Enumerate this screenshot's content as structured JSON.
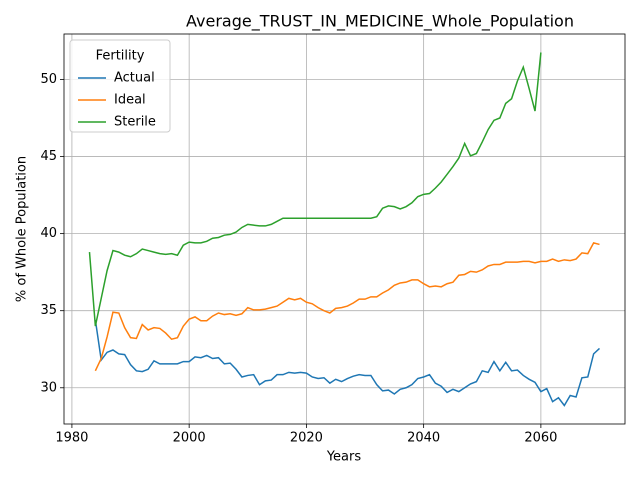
{
  "chart_data": {
    "type": "line",
    "title": "Average_TRUST_IN_MEDICINE_Whole_Population",
    "x_label": "Years",
    "y_label": "% of Whole Population",
    "legend_title": "Fertility",
    "legend": "upper left",
    "grid": true,
    "x": [
      1983,
      1984,
      1985,
      1986,
      1987,
      1988,
      1989,
      1990,
      1991,
      1992,
      1993,
      1994,
      1995,
      1996,
      1997,
      1998,
      1999,
      2000,
      2001,
      2002,
      2003,
      2004,
      2005,
      2006,
      2007,
      2008,
      2009,
      2010,
      2011,
      2012,
      2013,
      2014,
      2015,
      2016,
      2017,
      2018,
      2019,
      2020,
      2021,
      2022,
      2023,
      2024,
      2025,
      2026,
      2027,
      2028,
      2029,
      2030,
      2031,
      2032,
      2033,
      2034,
      2035,
      2036,
      2037,
      2038,
      2039,
      2040,
      2041,
      2042,
      2043,
      2044,
      2045,
      2046,
      2047,
      2048,
      2049,
      2050,
      2051,
      2052,
      2053,
      2054,
      2055,
      2056,
      2057,
      2058,
      2059,
      2060,
      2061,
      2062,
      2063,
      2064,
      2065,
      2066,
      2067,
      2068,
      2069,
      2070
    ],
    "series": [
      {
        "name": "Actual",
        "color": "#1f77b4",
        "values": [
          null,
          34.4,
          31.8,
          32.3,
          32.45,
          32.2,
          32.15,
          31.5,
          31.1,
          31.05,
          31.2,
          31.75,
          31.55,
          31.55,
          31.55,
          31.55,
          31.7,
          31.7,
          32.0,
          31.95,
          32.1,
          31.9,
          31.95,
          31.55,
          31.6,
          31.2,
          30.7,
          30.8,
          30.85,
          30.2,
          30.45,
          30.5,
          30.85,
          30.85,
          31.0,
          30.95,
          31.0,
          30.95,
          30.7,
          30.6,
          30.65,
          30.3,
          30.55,
          30.4,
          30.6,
          30.75,
          30.85,
          30.8,
          30.8,
          30.2,
          29.8,
          29.85,
          29.6,
          29.9,
          30.0,
          30.2,
          30.6,
          30.7,
          30.85,
          30.3,
          30.1,
          29.7,
          29.9,
          29.75,
          30.0,
          30.25,
          30.4,
          31.1,
          31.0,
          31.7,
          31.1,
          31.65,
          31.1,
          31.15,
          30.8,
          30.55,
          30.35,
          29.75,
          29.95,
          29.1,
          29.35,
          28.85,
          29.5,
          29.4,
          30.65,
          30.7,
          32.2,
          32.55
        ]
      },
      {
        "name": "Ideal",
        "color": "#ff7f0e",
        "values": [
          null,
          31.1,
          31.9,
          33.3,
          34.9,
          34.85,
          33.9,
          33.25,
          33.2,
          34.1,
          33.75,
          33.9,
          33.85,
          33.55,
          33.15,
          33.25,
          34.0,
          34.45,
          34.6,
          34.35,
          34.35,
          34.65,
          34.85,
          34.75,
          34.8,
          34.7,
          34.8,
          35.2,
          35.05,
          35.05,
          35.1,
          35.2,
          35.3,
          35.55,
          35.8,
          35.7,
          35.8,
          35.55,
          35.45,
          35.2,
          35.0,
          34.85,
          35.15,
          35.2,
          35.3,
          35.5,
          35.75,
          35.75,
          35.9,
          35.9,
          36.15,
          36.35,
          36.65,
          36.8,
          36.85,
          37.0,
          37.0,
          36.75,
          36.55,
          36.6,
          36.55,
          36.75,
          36.85,
          37.3,
          37.35,
          37.55,
          37.5,
          37.65,
          37.9,
          38.0,
          38.0,
          38.15,
          38.15,
          38.15,
          38.2,
          38.2,
          38.1,
          38.2,
          38.2,
          38.35,
          38.2,
          38.3,
          38.25,
          38.35,
          38.75,
          38.7,
          39.4,
          39.3
        ]
      },
      {
        "name": "Sterile",
        "color": "#2ca02c",
        "values": [
          38.8,
          34.0,
          35.8,
          37.6,
          38.9,
          38.8,
          38.6,
          38.5,
          38.7,
          39.0,
          38.9,
          38.8,
          38.7,
          38.65,
          38.7,
          38.6,
          39.25,
          39.45,
          39.4,
          39.4,
          39.5,
          39.7,
          39.75,
          39.9,
          39.95,
          40.1,
          40.4,
          40.6,
          40.55,
          40.5,
          40.5,
          40.6,
          40.8,
          41.0,
          41.0,
          41.0,
          41.0,
          41.0,
          41.0,
          41.0,
          41.0,
          41.0,
          41.0,
          41.0,
          41.0,
          41.0,
          41.0,
          41.0,
          41.0,
          41.1,
          41.65,
          41.8,
          41.75,
          41.6,
          41.75,
          42.0,
          42.4,
          42.55,
          42.6,
          42.95,
          43.35,
          43.85,
          44.35,
          44.9,
          45.85,
          45.05,
          45.2,
          45.95,
          46.75,
          47.35,
          47.5,
          48.45,
          48.75,
          49.9,
          50.8,
          49.4,
          47.95,
          51.75,
          null,
          null,
          null,
          null,
          null,
          null,
          null,
          null,
          null,
          null
        ]
      }
    ],
    "xlim": [
      1978.65,
      2074.35
    ],
    "xticks": [
      1980,
      2000,
      2020,
      2040,
      2060
    ],
    "ylim": [
      27.65,
      52.95
    ],
    "yticks": [
      30,
      35,
      40,
      45,
      50
    ]
  }
}
